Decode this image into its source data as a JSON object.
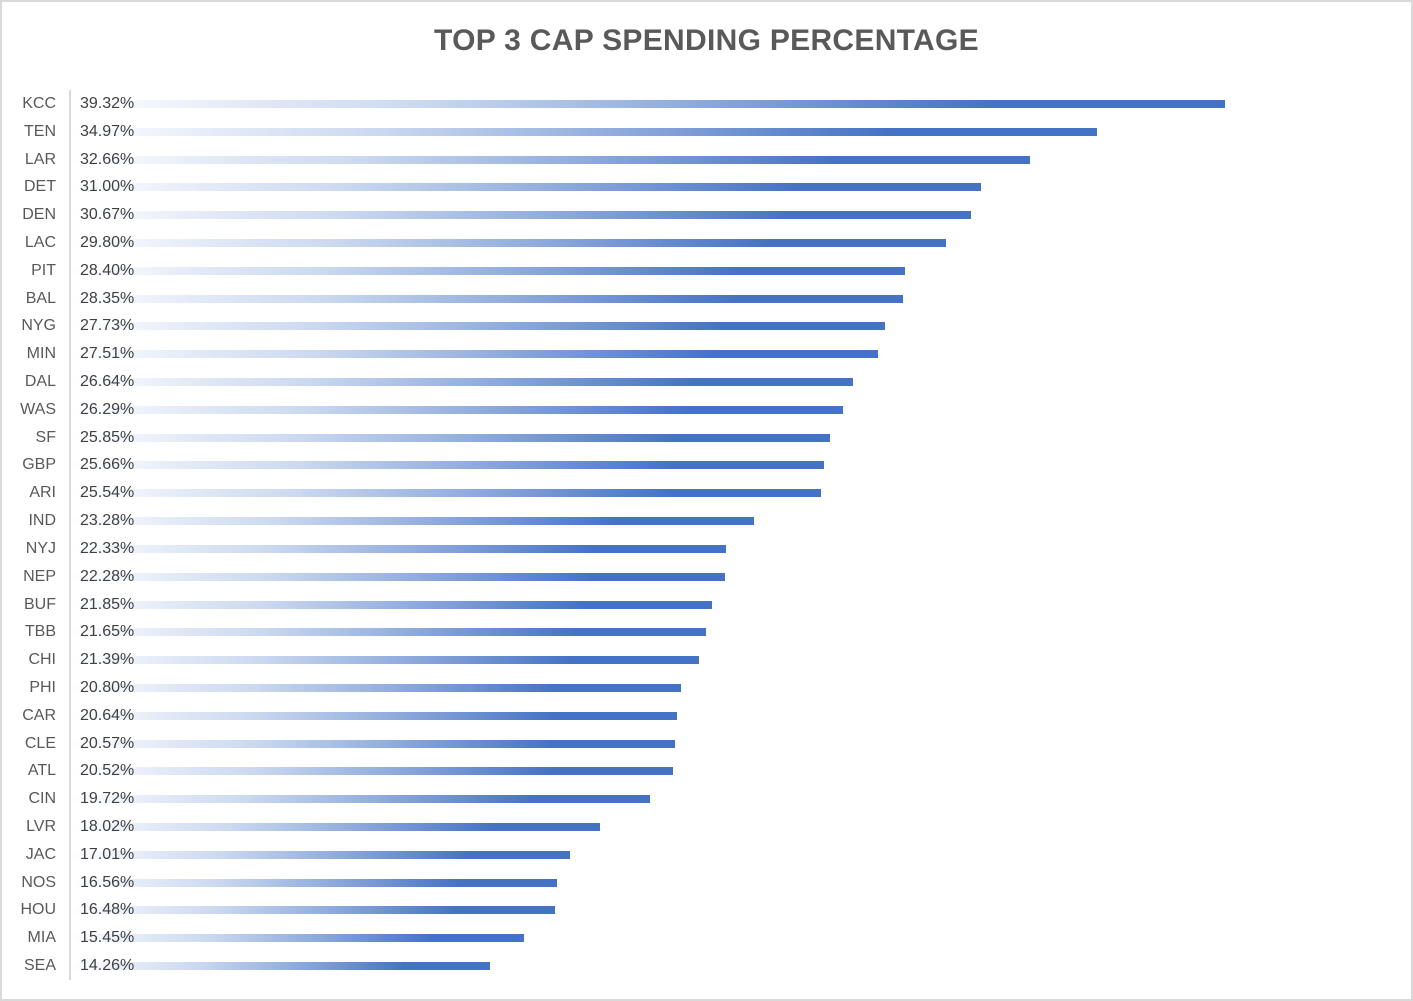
{
  "chart_data": {
    "type": "bar",
    "orientation": "horizontal",
    "title": "TOP 3 CAP SPENDING PERCENTAGE",
    "xlabel": "",
    "ylabel": "",
    "xlim": [
      0,
      45
    ],
    "grid": false,
    "legend": "none",
    "sort_order": "descending",
    "categories": [
      "KCC",
      "TEN",
      "LAR",
      "DET",
      "DEN",
      "LAC",
      "PIT",
      "BAL",
      "NYG",
      "MIN",
      "DAL",
      "WAS",
      "SF",
      "GBP",
      "ARI",
      "IND",
      "NYJ",
      "NEP",
      "BUF",
      "TBB",
      "CHI",
      "PHI",
      "CAR",
      "CLE",
      "ATL",
      "CIN",
      "LVR",
      "JAC",
      "NOS",
      "HOU",
      "MIA",
      "SEA"
    ],
    "values": [
      39.32,
      34.97,
      32.66,
      31.0,
      30.67,
      29.8,
      28.4,
      28.35,
      27.73,
      27.51,
      26.64,
      26.29,
      25.85,
      25.66,
      25.54,
      23.28,
      22.33,
      22.28,
      21.85,
      21.65,
      21.39,
      20.8,
      20.64,
      20.57,
      20.52,
      19.72,
      18.02,
      17.01,
      16.56,
      16.48,
      15.45,
      14.26
    ],
    "value_labels": [
      "39.32%",
      "34.97%",
      "32.66%",
      "31.00%",
      "30.67%",
      "29.80%",
      "28.40%",
      "28.35%",
      "27.73%",
      "27.51%",
      "26.64%",
      "26.29%",
      "25.85%",
      "25.66%",
      "25.54%",
      "23.28%",
      "22.33%",
      "22.28%",
      "21.85%",
      "21.65%",
      "21.39%",
      "20.80%",
      "20.64%",
      "20.57%",
      "20.52%",
      "19.72%",
      "18.02%",
      "17.01%",
      "16.56%",
      "16.48%",
      "15.45%",
      "14.26%"
    ],
    "colors": {
      "bar_tip": "#4472C4",
      "bar_base": "#FFFFFF",
      "title_text": "#595959",
      "category_text": "#595959",
      "value_text": "#404040",
      "axis_line": "#D9D9D9",
      "frame_border": "#D9D9D9",
      "background": "#FFFFFF"
    }
  }
}
